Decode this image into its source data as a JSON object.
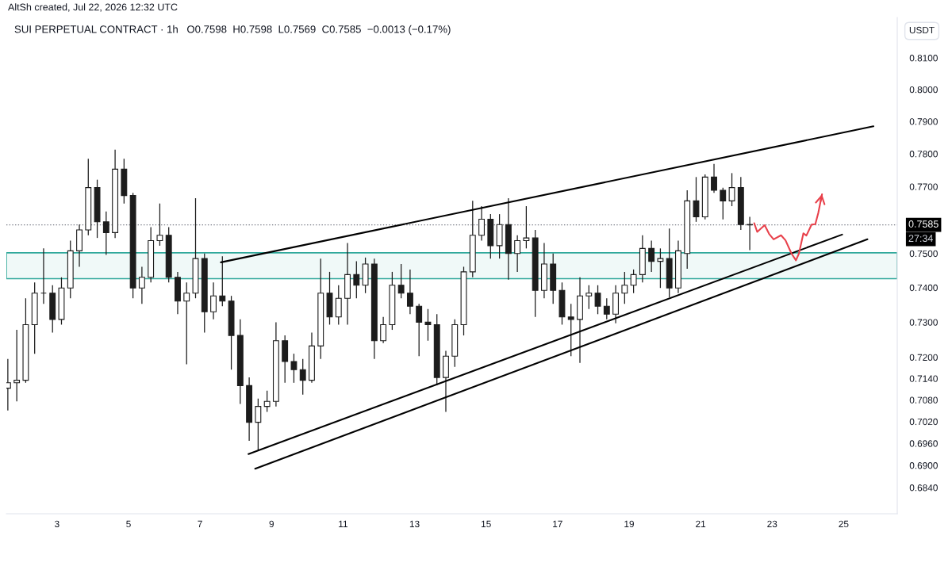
{
  "chart_data": {
    "type": "candlestick",
    "title": "SUI PERPETUAL CONTRACT · 1h",
    "ylabel": "USDT",
    "annotations": [
      "AltSh created, Jul 22, 2026 12:32 UTC",
      "O0.7598  H0.7598  L0.7569  C0.7585  −0.0013 (−0.17%)",
      "27:34"
    ],
    "log": "y",
    "xlim": [
      "2026-07-01T14:00",
      "2026-07-26T12:00"
    ],
    "xticks": [
      {
        "value": "2026-07-03",
        "label": "3"
      },
      {
        "value": "2026-07-05",
        "label": "5"
      },
      {
        "value": "2026-07-07",
        "label": "7"
      },
      {
        "value": "2026-07-09",
        "label": "9"
      },
      {
        "value": "2026-07-11",
        "label": "11"
      },
      {
        "value": "2026-07-13",
        "label": "13"
      },
      {
        "value": "2026-07-15",
        "label": "15"
      },
      {
        "value": "2026-07-17",
        "label": "17"
      },
      {
        "value": "2026-07-19",
        "label": "19"
      },
      {
        "value": "2026-07-21",
        "label": "21"
      },
      {
        "value": "2026-07-23",
        "label": "23"
      },
      {
        "value": "2026-07-25",
        "label": "25"
      }
    ],
    "ylim": [
      0.677,
      0.823
    ],
    "yticks": [
      {
        "value": 0.81,
        "label": "0.8100"
      },
      {
        "value": 0.8,
        "label": "0.8000"
      },
      {
        "value": 0.79,
        "label": "0.7900"
      },
      {
        "value": 0.78,
        "label": "0.7800"
      },
      {
        "value": 0.77,
        "label": "0.7700"
      },
      {
        "value": 0.75,
        "label": "0.7500"
      },
      {
        "value": 0.74,
        "label": "0.7400"
      },
      {
        "value": 0.73,
        "label": "0.7300"
      },
      {
        "value": 0.72,
        "label": "0.7200"
      },
      {
        "value": 0.714,
        "label": "0.7140"
      },
      {
        "value": 0.708,
        "label": "0.7080"
      },
      {
        "value": 0.702,
        "label": "0.7020"
      },
      {
        "value": 0.696,
        "label": "0.6960"
      },
      {
        "value": 0.69,
        "label": "0.6900"
      },
      {
        "value": 0.684,
        "label": "0.6840"
      }
    ],
    "ref_lines": [
      {
        "axis": "y",
        "value": 0.7585,
        "label": "0.7585",
        "color": "#787b86",
        "line_style": "dotted"
      }
    ],
    "bands": [
      {
        "axis": "y",
        "from": 0.7426,
        "to": 0.7502,
        "color": "#2fa89a"
      }
    ],
    "series": [
      {
        "type": "candlestick",
        "color": "#1c1c1c",
        "x": [
          "2026-07-01T15:00",
          "2026-07-01T21:00",
          "2026-07-02T03:00",
          "2026-07-02T09:00",
          "2026-07-02T15:00",
          "2026-07-02T21:00",
          "2026-07-03T03:00",
          "2026-07-03T09:00",
          "2026-07-03T15:00",
          "2026-07-03T21:00",
          "2026-07-04T03:00",
          "2026-07-04T09:00",
          "2026-07-04T15:00",
          "2026-07-04T21:00",
          "2026-07-05T03:00",
          "2026-07-05T09:00",
          "2026-07-05T15:00",
          "2026-07-05T21:00",
          "2026-07-06T03:00",
          "2026-07-06T09:00",
          "2026-07-06T15:00",
          "2026-07-06T21:00",
          "2026-07-07T03:00",
          "2026-07-07T09:00",
          "2026-07-07T15:00",
          "2026-07-07T21:00",
          "2026-07-08T03:00",
          "2026-07-08T09:00",
          "2026-07-08T15:00",
          "2026-07-08T21:00",
          "2026-07-09T03:00",
          "2026-07-09T09:00",
          "2026-07-09T15:00",
          "2026-07-09T21:00",
          "2026-07-10T03:00",
          "2026-07-10T09:00",
          "2026-07-10T15:00",
          "2026-07-10T21:00",
          "2026-07-11T03:00",
          "2026-07-11T09:00",
          "2026-07-11T15:00",
          "2026-07-11T21:00",
          "2026-07-12T03:00",
          "2026-07-12T09:00",
          "2026-07-12T15:00",
          "2026-07-12T21:00",
          "2026-07-13T03:00",
          "2026-07-13T09:00",
          "2026-07-13T15:00",
          "2026-07-13T21:00",
          "2026-07-14T03:00",
          "2026-07-14T09:00",
          "2026-07-14T15:00",
          "2026-07-14T21:00",
          "2026-07-15T03:00",
          "2026-07-15T09:00",
          "2026-07-15T15:00",
          "2026-07-15T21:00",
          "2026-07-16T03:00",
          "2026-07-16T09:00",
          "2026-07-16T15:00",
          "2026-07-16T21:00",
          "2026-07-17T03:00",
          "2026-07-17T09:00",
          "2026-07-17T15:00",
          "2026-07-17T21:00",
          "2026-07-18T03:00",
          "2026-07-18T09:00",
          "2026-07-18T15:00",
          "2026-07-18T21:00",
          "2026-07-19T03:00",
          "2026-07-19T09:00",
          "2026-07-19T15:00",
          "2026-07-19T21:00",
          "2026-07-20T03:00",
          "2026-07-20T09:00",
          "2026-07-20T15:00",
          "2026-07-20T21:00",
          "2026-07-21T03:00",
          "2026-07-21T09:00",
          "2026-07-21T15:00",
          "2026-07-21T21:00",
          "2026-07-22T03:00",
          "2026-07-22T09:00"
        ],
        "ohlc": [
          [
            0.7113,
            0.7195,
            0.7051,
            0.7128
          ],
          [
            0.7128,
            0.7278,
            0.7076,
            0.7135
          ],
          [
            0.7135,
            0.7369,
            0.7128,
            0.7293
          ],
          [
            0.7293,
            0.7415,
            0.721,
            0.7384
          ],
          [
            0.7384,
            0.7515,
            0.7353,
            0.7384
          ],
          [
            0.7384,
            0.7407,
            0.727,
            0.7308
          ],
          [
            0.7308,
            0.743,
            0.7293,
            0.7399
          ],
          [
            0.7399,
            0.7538,
            0.7369,
            0.7508
          ],
          [
            0.7508,
            0.7586,
            0.7461,
            0.757
          ],
          [
            0.757,
            0.7785,
            0.7554,
            0.7697
          ],
          [
            0.7697,
            0.7721,
            0.7546,
            0.7594
          ],
          [
            0.7594,
            0.7625,
            0.7496,
            0.7562
          ],
          [
            0.7562,
            0.7813,
            0.7546,
            0.7753
          ],
          [
            0.7753,
            0.7785,
            0.7649,
            0.7673
          ],
          [
            0.7673,
            0.7681,
            0.7369,
            0.7399
          ],
          [
            0.7399,
            0.7461,
            0.7353,
            0.743
          ],
          [
            0.743,
            0.7578,
            0.7415,
            0.7538
          ],
          [
            0.7538,
            0.7649,
            0.7523,
            0.7554
          ],
          [
            0.7554,
            0.7578,
            0.7415,
            0.743
          ],
          [
            0.743,
            0.7446,
            0.7323,
            0.7361
          ],
          [
            0.7361,
            0.7415,
            0.718,
            0.7384
          ],
          [
            0.7384,
            0.7665,
            0.7369,
            0.7485
          ],
          [
            0.7485,
            0.75,
            0.727,
            0.733
          ],
          [
            0.733,
            0.7415,
            0.7308,
            0.7376
          ],
          [
            0.7376,
            0.7492,
            0.7346,
            0.7361
          ],
          [
            0.7361,
            0.7376,
            0.7165,
            0.7262
          ],
          [
            0.7262,
            0.7308,
            0.7069,
            0.712
          ],
          [
            0.712,
            0.7143,
            0.6967,
            0.7018
          ],
          [
            0.7018,
            0.7084,
            0.6939,
            0.7062
          ],
          [
            0.7062,
            0.7106,
            0.7047,
            0.7076
          ],
          [
            0.7076,
            0.73,
            0.7062,
            0.7247
          ],
          [
            0.7247,
            0.7262,
            0.7128,
            0.7188
          ],
          [
            0.7188,
            0.721,
            0.7128,
            0.7165
          ],
          [
            0.7165,
            0.7195,
            0.7095,
            0.7135
          ],
          [
            0.7135,
            0.727,
            0.7128,
            0.7232
          ],
          [
            0.7232,
            0.7485,
            0.7195,
            0.7384
          ],
          [
            0.7384,
            0.7446,
            0.7293,
            0.7315
          ],
          [
            0.7315,
            0.7407,
            0.7293,
            0.7369
          ],
          [
            0.7369,
            0.7531,
            0.7293,
            0.7438
          ],
          [
            0.7438,
            0.7477,
            0.7369,
            0.7407
          ],
          [
            0.7407,
            0.7488,
            0.7384,
            0.7469
          ],
          [
            0.7469,
            0.7485,
            0.7195,
            0.7247
          ],
          [
            0.7247,
            0.7315,
            0.724,
            0.7293
          ],
          [
            0.7293,
            0.7446,
            0.7278,
            0.7407
          ],
          [
            0.7407,
            0.7469,
            0.7369,
            0.7384
          ],
          [
            0.7384,
            0.7453,
            0.7323,
            0.7346
          ],
          [
            0.7346,
            0.7353,
            0.7203,
            0.73
          ],
          [
            0.73,
            0.7338,
            0.7247,
            0.7293
          ],
          [
            0.7293,
            0.7323,
            0.7121,
            0.7143
          ],
          [
            0.7143,
            0.7218,
            0.7047,
            0.7203
          ],
          [
            0.7203,
            0.7308,
            0.7173,
            0.7293
          ],
          [
            0.7293,
            0.7461,
            0.7262,
            0.7446
          ],
          [
            0.7446,
            0.7657,
            0.743,
            0.7554
          ],
          [
            0.7554,
            0.7641,
            0.7538,
            0.7602
          ],
          [
            0.7602,
            0.7617,
            0.7485,
            0.7523
          ],
          [
            0.7523,
            0.7617,
            0.7485,
            0.7586
          ],
          [
            0.7586,
            0.7665,
            0.7423,
            0.75
          ],
          [
            0.75,
            0.7554,
            0.7446,
            0.7538
          ],
          [
            0.7538,
            0.7641,
            0.7515,
            0.7546
          ],
          [
            0.7546,
            0.757,
            0.7315,
            0.7392
          ],
          [
            0.7392,
            0.7531,
            0.7369,
            0.7469
          ],
          [
            0.7469,
            0.75,
            0.7353,
            0.7392
          ],
          [
            0.7392,
            0.7415,
            0.7293,
            0.7315
          ],
          [
            0.7315,
            0.7353,
            0.7203,
            0.7308
          ],
          [
            0.7308,
            0.743,
            0.7184,
            0.7376
          ],
          [
            0.7376,
            0.7407,
            0.7338,
            0.7384
          ],
          [
            0.7384,
            0.7407,
            0.7323,
            0.7346
          ],
          [
            0.7346,
            0.7369,
            0.7308,
            0.7323
          ],
          [
            0.7323,
            0.7407,
            0.7297,
            0.7384
          ],
          [
            0.7384,
            0.7446,
            0.7353,
            0.7407
          ],
          [
            0.7407,
            0.7453,
            0.7384,
            0.7438
          ],
          [
            0.7438,
            0.7554,
            0.7415,
            0.7515
          ],
          [
            0.7515,
            0.7538,
            0.7446,
            0.7477
          ],
          [
            0.7477,
            0.7515,
            0.7399,
            0.7485
          ],
          [
            0.7485,
            0.7574,
            0.7372,
            0.7399
          ],
          [
            0.7399,
            0.7538,
            0.7384,
            0.7508
          ],
          [
            0.75,
            0.7689,
            0.7455,
            0.7657
          ],
          [
            0.7657,
            0.7729,
            0.7594,
            0.7609
          ],
          [
            0.7609,
            0.7737,
            0.7601,
            0.7729
          ],
          [
            0.7729,
            0.7769,
            0.7681,
            0.7689
          ],
          [
            0.7689,
            0.7697,
            0.7601,
            0.7657
          ],
          [
            0.7657,
            0.7741,
            0.7641,
            0.7697
          ],
          [
            0.7697,
            0.7729,
            0.757,
            0.7586
          ],
          [
            0.7586,
            0.7609,
            0.751,
            0.7585
          ]
        ]
      },
      {
        "type": "line",
        "color": "#000000",
        "x": [
          "2026-07-07T14:00",
          "2026-07-25T20:00"
        ],
        "values": [
          0.7474,
          0.7885
        ]
      },
      {
        "type": "line",
        "color": "#000000",
        "x": [
          "2026-07-08T08:30",
          "2026-07-24T23:00"
        ],
        "values": [
          0.6931,
          0.7556
        ]
      },
      {
        "type": "line",
        "color": "#000000",
        "x": [
          "2026-07-08T13:00",
          "2026-07-25T16:00"
        ],
        "values": [
          0.6891,
          0.7542
        ]
      },
      {
        "type": "line",
        "color": "#e8414b",
        "x": [
          "2026-07-22T12:00",
          "2026-07-22T14:00",
          "2026-07-22T19:00",
          "2026-07-22T22:00",
          "2026-07-23T01:00",
          "2026-07-23T06:00",
          "2026-07-23T09:00",
          "2026-07-23T13:00",
          "2026-07-23T16:00",
          "2026-07-23T18:00",
          "2026-07-23T21:00",
          "2026-07-23T23:00",
          "2026-07-24T02:30",
          "2026-07-24T05:00",
          "2026-07-24T07:00",
          "2026-07-24T09:30"
        ],
        "values": [
          0.759,
          0.7564,
          0.7584,
          0.7558,
          0.7542,
          0.7554,
          0.7539,
          0.75,
          0.748,
          0.75,
          0.756,
          0.7553,
          0.7586,
          0.7587,
          0.7621,
          0.7677
        ]
      }
    ]
  }
}
